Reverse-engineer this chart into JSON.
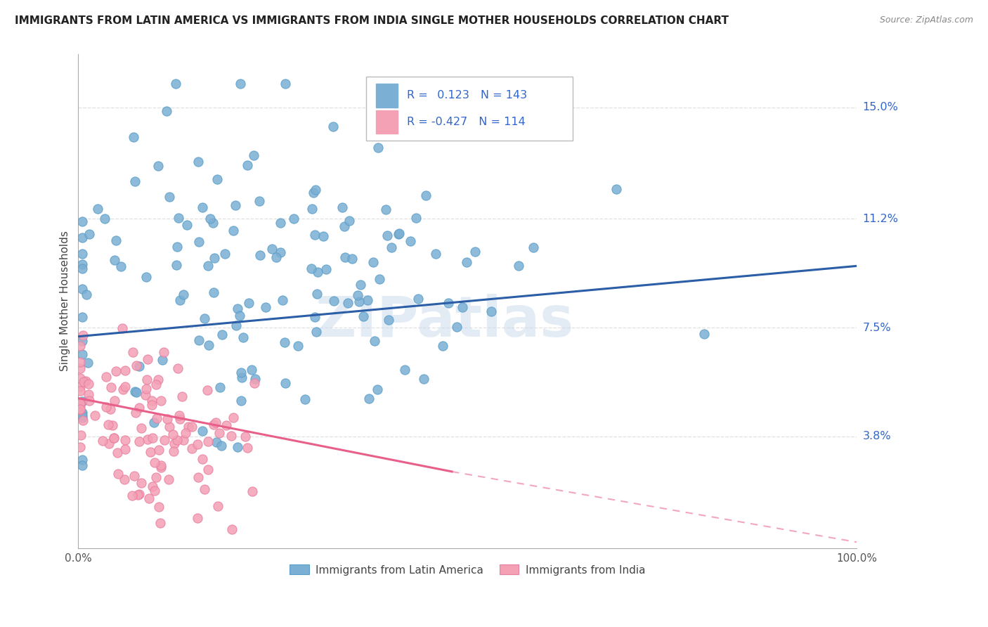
{
  "title": "IMMIGRANTS FROM LATIN AMERICA VS IMMIGRANTS FROM INDIA SINGLE MOTHER HOUSEHOLDS CORRELATION CHART",
  "source": "Source: ZipAtlas.com",
  "ylabel": "Single Mother Households",
  "watermark": "ZIPatlas",
  "xlim": [
    0,
    100
  ],
  "ylim": [
    0,
    16.8
  ],
  "yticks": [
    3.8,
    7.5,
    11.2,
    15.0
  ],
  "xtick_labels": [
    "0.0%",
    "100.0%"
  ],
  "ytick_labels": [
    "3.8%",
    "7.5%",
    "11.2%",
    "15.0%"
  ],
  "blue_R": 0.123,
  "blue_N": 143,
  "pink_R": -0.427,
  "pink_N": 114,
  "blue_color": "#7BAFD4",
  "blue_edge_color": "#5B9EC9",
  "pink_color": "#F4A0B5",
  "pink_edge_color": "#E87FA0",
  "trend_blue_color": "#2B5EA7",
  "trend_pink_color": "#E8608A",
  "blue_label": "Immigrants from Latin America",
  "pink_label": "Immigrants from India",
  "legend_val_blue": "0.123",
  "legend_val_pink": "-0.427",
  "legend_N_blue": 143,
  "legend_N_pink": 114,
  "seed_blue": 42,
  "seed_pink": 7,
  "blue_x_mean": 22,
  "blue_x_std": 18,
  "blue_y_mean": 9.0,
  "blue_y_std": 2.8,
  "pink_x_mean": 8,
  "pink_x_std": 7,
  "pink_y_mean": 4.2,
  "pink_y_std": 1.5,
  "blue_trend_y0": 7.2,
  "blue_trend_y1": 9.6,
  "pink_trend_y0": 5.1,
  "pink_trend_y_solid_end": 2.6,
  "pink_solid_x_end": 48,
  "pink_trend_y_dashed_end": 0.2,
  "background_color": "#FFFFFF",
  "grid_color": "#DDDDDD",
  "axis_color": "#AAAAAA",
  "text_color": "#444444",
  "tick_color": "#555555",
  "right_label_color": "#3366CC"
}
